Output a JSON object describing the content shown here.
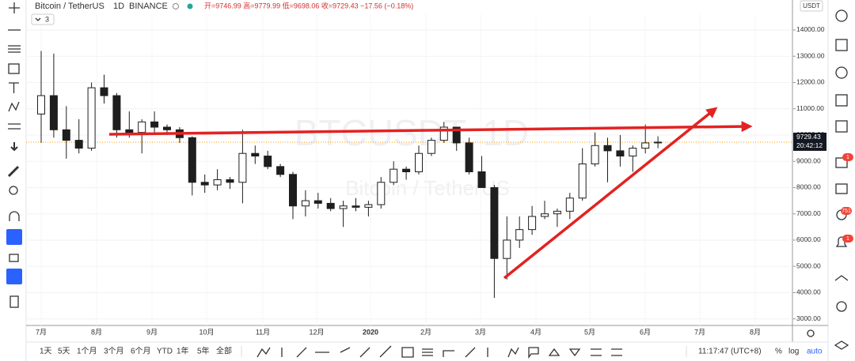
{
  "header": {
    "symbol": "Bitcoin / TetherUS",
    "interval": "1D",
    "exchange": "BINANCE",
    "ohlc": "开=9746.99 高=9779.99 低=9698.06 收=9729.43 −17.56 (−0.18%)",
    "indicator_count": "3"
  },
  "chart_data": {
    "type": "candlestick",
    "watermark": "BTCUSDT, 1D",
    "watermark_sub": "Bitcoin / TetherUS",
    "currency": "USDT",
    "open": [
      10800,
      11500,
      10200,
      9800,
      9500,
      11800,
      11500,
      10200,
      10100,
      10500,
      10300,
      10200,
      9900,
      8200,
      8100,
      8300,
      8200,
      9300,
      9200,
      8800,
      8500,
      7300,
      7500,
      7400,
      7200,
      7300,
      7250,
      7350,
      8200,
      8700,
      8600,
      9300,
      9800,
      10300,
      9700,
      8600,
      8000,
      5300,
      6000,
      6400,
      6900,
      7000,
      7100,
      7600,
      8900,
      9600,
      9400,
      9200,
      9500,
      9700
    ],
    "high": [
      13200,
      13100,
      11100,
      10600,
      12000,
      12300,
      11600,
      10900,
      10600,
      10900,
      10400,
      10300,
      9950,
      8500,
      8700,
      8400,
      10200,
      9600,
      9400,
      8900,
      8600,
      7900,
      7800,
      7600,
      7500,
      7600,
      7500,
      8400,
      9000,
      8800,
      9600,
      9900,
      10500,
      10300,
      9900,
      9200,
      8100,
      6900,
      6900,
      7300,
      7500,
      7200,
      7800,
      9500,
      10100,
      9900,
      10000,
      9600,
      10400,
      9950
    ],
    "low": [
      9700,
      9900,
      9100,
      9300,
      9400,
      11200,
      9900,
      9900,
      9300,
      10000,
      10000,
      9700,
      7700,
      7800,
      7900,
      7950,
      7400,
      8900,
      8700,
      8400,
      6800,
      6900,
      7200,
      7100,
      6500,
      7100,
      6900,
      7200,
      8100,
      8300,
      8500,
      9200,
      9700,
      9400,
      8500,
      8000,
      3800,
      4500,
      5700,
      6200,
      6800,
      6500,
      6800,
      7500,
      8800,
      8200,
      8800,
      8600,
      9300,
      9500
    ],
    "close": [
      11500,
      10200,
      9800,
      9500,
      11800,
      11500,
      10200,
      10100,
      10500,
      10300,
      10200,
      9900,
      8200,
      8100,
      8300,
      8200,
      9300,
      9200,
      8800,
      8500,
      7300,
      7500,
      7400,
      7200,
      7300,
      7250,
      7350,
      8200,
      8700,
      8600,
      9300,
      9800,
      10300,
      9700,
      8600,
      8000,
      5300,
      6000,
      6400,
      6900,
      7000,
      7100,
      7600,
      8900,
      9600,
      9400,
      9200,
      9500,
      9700,
      9729.43
    ],
    "up_color": "#ffffff",
    "down_color": "#1e1e1e",
    "wick_color": "#1e1e1e",
    "ylim": [
      2750,
      14600
    ],
    "yticks": [
      {
        "value": 3000,
        "label": "3000.00"
      },
      {
        "value": 4000,
        "label": "4000.00"
      },
      {
        "value": 5000,
        "label": "5000.00"
      },
      {
        "value": 6000,
        "label": "6000.00"
      },
      {
        "value": 7000,
        "label": "7000.00"
      },
      {
        "value": 8000,
        "label": "8000.00"
      },
      {
        "value": 9000,
        "label": "9000.00"
      },
      {
        "value": 10000,
        "label": "10000.00"
      },
      {
        "value": 11000,
        "label": "11000.00"
      },
      {
        "value": 12000,
        "label": "12000.00"
      },
      {
        "value": 13000,
        "label": "13000.00"
      },
      {
        "value": 14000,
        "label": "14000.00"
      }
    ],
    "x_labels": [
      "7月",
      "8月",
      "9月",
      "10月",
      "11月",
      "12月",
      "2020",
      "2月",
      "3月",
      "4月",
      "5月",
      "6月",
      "7月",
      "8月"
    ],
    "last_price": 9729.43,
    "last_price_color": "#ff9800",
    "countdown": "20:42:12"
  },
  "bottom_bar": {
    "ranges": [
      "1天",
      "5天",
      "1个月",
      "3个月",
      "6个月",
      "YTD",
      "1年",
      "5年",
      "全部"
    ],
    "clock": "11:17:47 (UTC+8)",
    "percent": "%",
    "log": "log",
    "auto": "auto"
  },
  "sidebar": {
    "badges": [
      "1",
      "751",
      "1"
    ]
  }
}
